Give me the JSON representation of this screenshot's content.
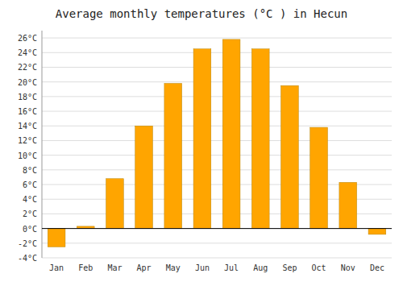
{
  "chart_data": {
    "type": "bar",
    "title": "Average monthly temperatures (°C ) in Hecun",
    "categories": [
      "Jan",
      "Feb",
      "Mar",
      "Apr",
      "May",
      "Jun",
      "Jul",
      "Aug",
      "Sep",
      "Oct",
      "Nov",
      "Dec"
    ],
    "values": [
      -2.5,
      0.3,
      6.8,
      14.0,
      19.8,
      24.5,
      25.8,
      24.5,
      19.5,
      13.8,
      6.3,
      -0.8
    ],
    "color": "#FFA500",
    "ylim": [
      -4,
      27
    ],
    "yticks": [
      {
        "value": -4,
        "label": "-4°C"
      },
      {
        "value": -2,
        "label": "-2°C"
      },
      {
        "value": 0,
        "label": "0°C"
      },
      {
        "value": 2,
        "label": "2°C"
      },
      {
        "value": 4,
        "label": "4°C"
      },
      {
        "value": 6,
        "label": "6°C"
      },
      {
        "value": 8,
        "label": "8°C"
      },
      {
        "value": 10,
        "label": "10°C"
      },
      {
        "value": 12,
        "label": "12°C"
      },
      {
        "value": 14,
        "label": "14°C"
      },
      {
        "value": 16,
        "label": "16°C"
      },
      {
        "value": 18,
        "label": "18°C"
      },
      {
        "value": 20,
        "label": "20°C"
      },
      {
        "value": 22,
        "label": "22°C"
      },
      {
        "value": 24,
        "label": "24°C"
      },
      {
        "value": 26,
        "label": "26°C"
      }
    ],
    "grid": true
  }
}
